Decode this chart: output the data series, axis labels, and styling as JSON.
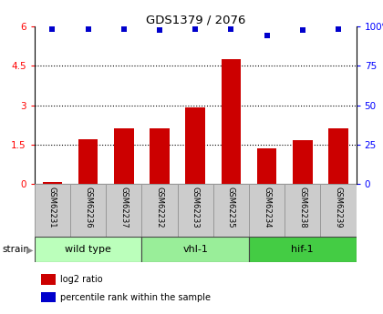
{
  "title": "GDS1379 / 2076",
  "samples": [
    "GSM62231",
    "GSM62236",
    "GSM62237",
    "GSM62232",
    "GSM62233",
    "GSM62235",
    "GSM62234",
    "GSM62238",
    "GSM62239"
  ],
  "log2_ratio": [
    0.05,
    1.7,
    2.1,
    2.1,
    2.9,
    4.75,
    1.35,
    1.65,
    2.1
  ],
  "percentile_yval": [
    5.9,
    5.9,
    5.9,
    5.88,
    5.9,
    5.9,
    5.65,
    5.88,
    5.9
  ],
  "ylim_left": [
    0,
    6
  ],
  "ylim_right": [
    0,
    100
  ],
  "yticks_left": [
    0,
    1.5,
    3.0,
    4.5,
    6.0
  ],
  "ytick_labels_left": [
    "0",
    "1.5",
    "3",
    "4.5",
    "6"
  ],
  "yticks_right": [
    0,
    25,
    50,
    75,
    100
  ],
  "ytick_labels_right": [
    "0",
    "25",
    "50",
    "75",
    "100%"
  ],
  "grid_lines": [
    1.5,
    3.0,
    4.5
  ],
  "bar_color": "#cc0000",
  "dot_color": "#0000cc",
  "strain_groups": [
    {
      "label": "wild type",
      "start": 0,
      "end": 3,
      "color": "#bbffbb"
    },
    {
      "label": "vhl-1",
      "start": 3,
      "end": 6,
      "color": "#99ee99"
    },
    {
      "label": "hif-1",
      "start": 6,
      "end": 9,
      "color": "#44cc44"
    }
  ],
  "strain_label": "strain",
  "legend_items": [
    {
      "label": "log2 ratio",
      "color": "#cc0000"
    },
    {
      "label": "percentile rank within the sample",
      "color": "#0000cc"
    }
  ],
  "bg_color": "#ffffff",
  "label_box_color": "#cccccc",
  "label_box_edge": "#999999"
}
